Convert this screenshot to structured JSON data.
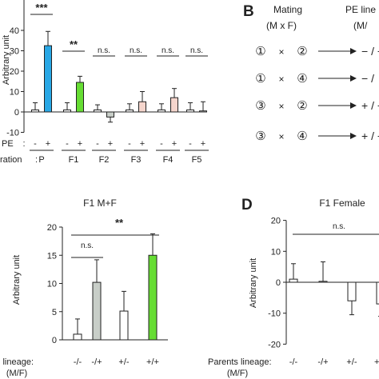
{
  "panels": {
    "A": {
      "ylabel": "Arbitrary unit",
      "row_pe_label": "PE",
      "row_gen_label": "ration",
      "signs": [
        "-",
        "+"
      ],
      "colon": ":",
      "generations": [
        "P",
        "F1",
        "F2",
        "F3",
        "F4",
        "F5"
      ]
    },
    "B": {
      "letter": "B",
      "mating_title": "Mating",
      "mating_sub": "(M x F)",
      "pe_title": "PE line",
      "pe_sub": "(M/",
      "times": "×",
      "rows": [
        {
          "m": "①",
          "f": "②",
          "result": "− / −"
        },
        {
          "m": "①",
          "f": "④",
          "result": "− /"
        },
        {
          "m": "③",
          "f": "②",
          "result": "+ / −"
        },
        {
          "m": "③",
          "f": "④",
          "result": "+ / +"
        }
      ]
    },
    "C": {
      "title": "F1 M+F",
      "ylabel": "Arbitrary unit",
      "xlabel_line1": "Parents lineage:",
      "xlabel_line2": "(M/F)"
    },
    "D": {
      "letter": "D",
      "title": "F1 Female",
      "ylabel": "Arbitrary unit",
      "xlabel_line1": "Parents lineage:",
      "xlabel_line2": "(M/F)"
    }
  },
  "colors": {
    "blue": "#29a8e6",
    "green": "#66dd33",
    "grey": "#c8cec8",
    "pink": "#f5d5cc",
    "white": "#ffffff",
    "sig": "#e0242b",
    "black": "#222222"
  },
  "chart_data": [
    {
      "id": "A",
      "type": "bar",
      "ylabel": "Arbitrary unit",
      "ylim": [
        -10,
        40
      ],
      "yticks": [
        -10,
        0,
        10,
        20,
        30,
        40
      ],
      "groups": [
        {
          "gen": "P",
          "pe_minus": 1.0,
          "err_minus": 3.5,
          "pe_plus": 32.5,
          "err_plus": 7.0,
          "color": "#29a8e6",
          "sig": "***"
        },
        {
          "gen": "F1",
          "pe_minus": 1.0,
          "err_minus": 3.5,
          "pe_plus": 14.5,
          "err_plus": 3.0,
          "color": "#66dd33",
          "sig": "**"
        },
        {
          "gen": "F2",
          "pe_minus": 1.0,
          "err_minus": 2.5,
          "pe_plus": -2.5,
          "err_plus": 2.5,
          "color": "#c8cec8",
          "sig": "n.s."
        },
        {
          "gen": "F3",
          "pe_minus": 1.0,
          "err_minus": 3.0,
          "pe_plus": 5.0,
          "err_plus": 5.0,
          "color": "#f5d5cc",
          "sig": "n.s."
        },
        {
          "gen": "F4",
          "pe_minus": 1.0,
          "err_minus": 3.0,
          "pe_plus": 7.0,
          "err_plus": 4.5,
          "color": "#f5d5cc",
          "sig": "n.s."
        },
        {
          "gen": "F5",
          "pe_minus": 1.0,
          "err_minus": 3.5,
          "pe_plus": 0.5,
          "err_plus": 4.5,
          "color": "#ffffff",
          "sig": "n.s."
        }
      ]
    },
    {
      "id": "C",
      "type": "bar",
      "title": "F1 M+F",
      "ylabel": "Arbitrary unit",
      "ylim": [
        0,
        20
      ],
      "yticks": [
        0,
        5,
        10,
        15,
        20
      ],
      "categories": [
        "-/-",
        "-/+",
        "+/-",
        "+/+"
      ],
      "values": [
        1.0,
        10.2,
        5.1,
        15.0
      ],
      "errors": [
        2.7,
        4.0,
        3.5,
        3.8
      ],
      "colors": [
        "#ffffff",
        "#c8cec8",
        "#ffffff",
        "#66dd33"
      ],
      "annotations": [
        {
          "from": 0,
          "to": 1,
          "label": "n.s.",
          "color": "#222222"
        },
        {
          "from": 0,
          "to": 3,
          "label": "**",
          "color": "#e0242b"
        }
      ]
    },
    {
      "id": "D",
      "type": "bar",
      "title": "F1 Female",
      "ylabel": "Arbitrary unit",
      "ylim": [
        -20,
        20
      ],
      "yticks": [
        -20,
        -10,
        0,
        10,
        20
      ],
      "categories": [
        "-/-",
        "-/+",
        "+/-",
        "+/+"
      ],
      "values": [
        1.0,
        0.3,
        -6.0,
        -7.0
      ],
      "errors": [
        5.0,
        6.3,
        4.5,
        4.0
      ],
      "colors": [
        "#ffffff",
        "#ffffff",
        "#ffffff",
        "#ffffff"
      ],
      "annotations": [
        {
          "from": 0,
          "to": 3,
          "label": "n.s.",
          "color": "#222222"
        }
      ]
    }
  ]
}
